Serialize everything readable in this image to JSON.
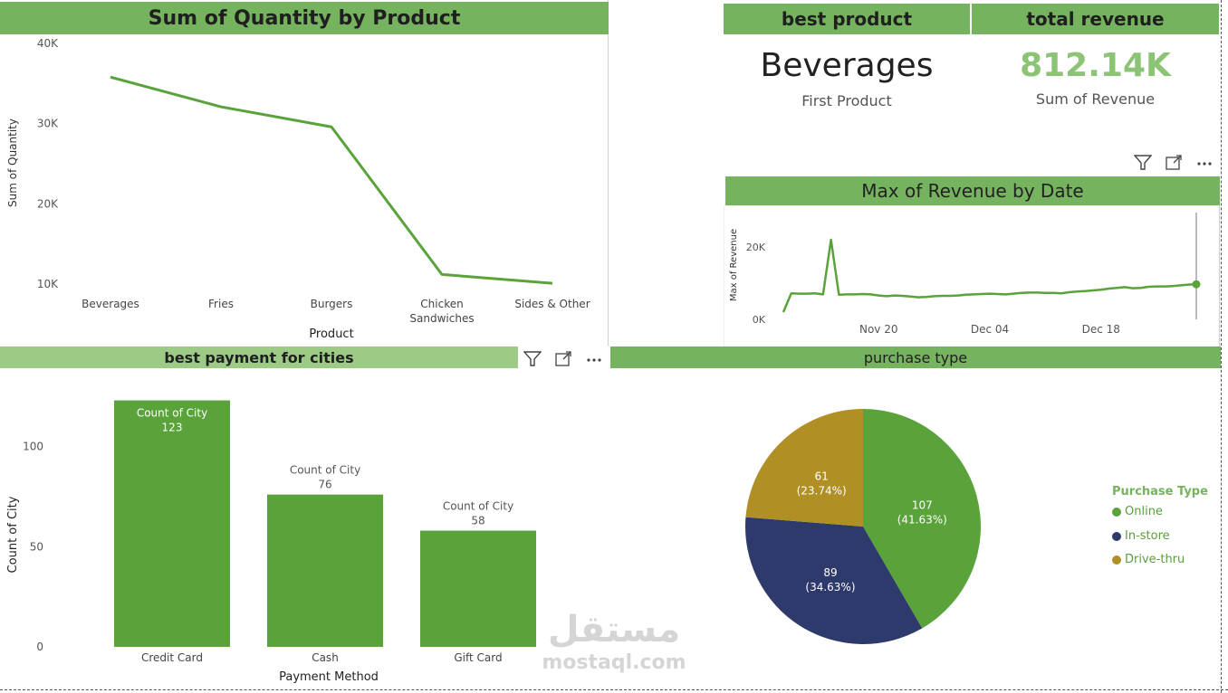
{
  "quantity_chart": {
    "title": "Sum of Quantity by Product",
    "xlabel": "Product",
    "ylabel": "Sum of Quantity",
    "y_ticks": [
      "40K",
      "30K",
      "20K",
      "10K"
    ],
    "categories": [
      "Beverages",
      "Fries",
      "Burgers",
      "Chicken Sandwiches",
      "Sides & Other"
    ],
    "category_lines": [
      [
        "Beverages"
      ],
      [
        "Fries"
      ],
      [
        "Burgers"
      ],
      [
        "Chicken",
        "Sandwiches"
      ],
      [
        "Sides & Other"
      ]
    ]
  },
  "cards": {
    "best_product_title": "best product",
    "best_product_value": "Beverages",
    "best_product_label": "First Product",
    "total_revenue_title": "total revenue",
    "total_revenue_value": "812.14K",
    "total_revenue_label": "Sum of Revenue"
  },
  "revenue_chart": {
    "title": "Max of Revenue by Date",
    "ylabel": "Max of Revenue",
    "y_ticks": [
      "20K",
      "0K"
    ],
    "x_ticks": [
      "Nov 20",
      "Dec 04",
      "Dec 18"
    ]
  },
  "payment_chart": {
    "title": "best payment for cities",
    "xlabel": "Payment Method",
    "ylabel": "Count of City",
    "y_ticks": [
      "100",
      "50",
      "0"
    ],
    "data_label_title": "Count of City"
  },
  "purchase_chart": {
    "title": "purchase type",
    "legend_title": "Purchase Type",
    "slices": [
      {
        "name": "Online",
        "value": 107,
        "label_value": "107",
        "label_pct": "(41.63%)",
        "color": "#5aa33a"
      },
      {
        "name": "In-store",
        "value": 89,
        "label_value": "89",
        "label_pct": "(34.63%)",
        "color": "#2e3a6b"
      },
      {
        "name": "Drive-thru",
        "value": 61,
        "label_value": "61",
        "label_pct": "(23.74%)",
        "color": "#b08f25"
      }
    ]
  },
  "watermark": {
    "arabic": "مستقل",
    "latin": "mostaql.com"
  },
  "chart_data": [
    {
      "type": "line",
      "title": "Sum of Quantity by Product",
      "xlabel": "Product",
      "ylabel": "Sum of Quantity",
      "categories": [
        "Beverages",
        "Fries",
        "Burgers",
        "Chicken Sandwiches",
        "Sides & Other"
      ],
      "values": [
        35800,
        32100,
        29600,
        11200,
        10100
      ],
      "ylim": [
        10000,
        40000
      ],
      "grid": false,
      "color": "#5aa33a"
    },
    {
      "type": "line",
      "title": "Max of Revenue by Date",
      "xlabel": "",
      "ylabel": "Max of Revenue",
      "x": [
        "Nov 08",
        "Nov 09",
        "Nov 10",
        "Nov 11",
        "Nov 12",
        "Nov 13",
        "Nov 14",
        "Nov 15",
        "Nov 16",
        "Nov 17",
        "Nov 18",
        "Nov 19",
        "Nov 20",
        "Nov 21",
        "Nov 22",
        "Nov 23",
        "Nov 24",
        "Nov 25",
        "Nov 26",
        "Nov 27",
        "Nov 28",
        "Nov 29",
        "Nov 30",
        "Dec 01",
        "Dec 02",
        "Dec 03",
        "Dec 04",
        "Dec 05",
        "Dec 06",
        "Dec 07",
        "Dec 08",
        "Dec 09",
        "Dec 10",
        "Dec 11",
        "Dec 12",
        "Dec 13",
        "Dec 14",
        "Dec 15",
        "Dec 16",
        "Dec 17",
        "Dec 18",
        "Dec 19",
        "Dec 20",
        "Dec 21",
        "Dec 22",
        "Dec 23",
        "Dec 24",
        "Dec 25",
        "Dec 26",
        "Dec 27",
        "Dec 28",
        "Dec 29",
        "Dec 30"
      ],
      "values": [
        2000,
        7200,
        7100,
        7100,
        7200,
        6900,
        22000,
        6800,
        6900,
        6900,
        7000,
        6900,
        6600,
        6400,
        6600,
        6500,
        6300,
        6100,
        6200,
        6400,
        6500,
        6500,
        6600,
        6800,
        6900,
        7000,
        7100,
        7000,
        6900,
        7100,
        7300,
        7400,
        7400,
        7300,
        7300,
        7200,
        7500,
        7700,
        7800,
        8000,
        8200,
        8500,
        8700,
        8900,
        8600,
        8700,
        9000,
        9100,
        9100,
        9200,
        9400,
        9600,
        9700
      ],
      "ylim": [
        0,
        30000
      ],
      "x_ticks": [
        "Nov 20",
        "Dec 04",
        "Dec 18"
      ],
      "grid": false,
      "color": "#5aa33a"
    },
    {
      "type": "bar",
      "title": "best payment for cities",
      "xlabel": "Payment Method",
      "ylabel": "Count of City",
      "categories": [
        "Credit Card",
        "Cash",
        "Gift Card"
      ],
      "values": [
        123,
        76,
        58
      ],
      "ylim": [
        0,
        130
      ],
      "color": "#5aa33a"
    },
    {
      "type": "pie",
      "title": "purchase type",
      "categories": [
        "Online",
        "In-store",
        "Drive-thru"
      ],
      "values": [
        107,
        89,
        61
      ],
      "percentages": [
        41.63,
        34.63,
        23.74
      ],
      "legend": "right"
    }
  ]
}
